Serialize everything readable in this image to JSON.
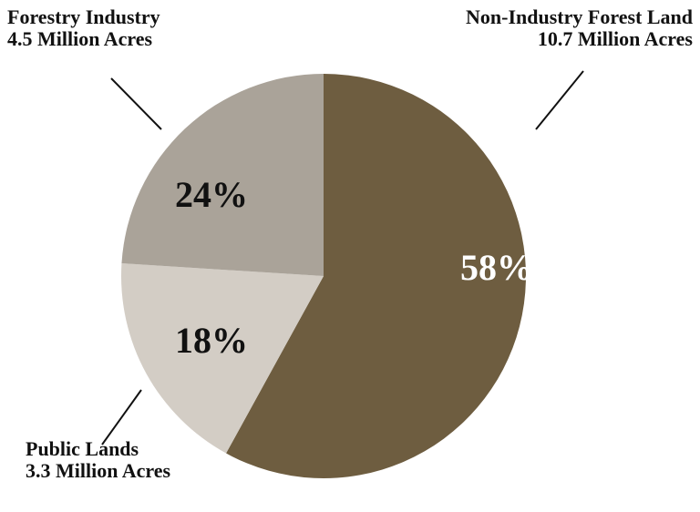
{
  "chart_data": {
    "type": "pie",
    "categories": [
      "Non-Industry Forest Land",
      "Public Lands",
      "Forestry Industry"
    ],
    "values": [
      58,
      18,
      24
    ],
    "value_labels": [
      "58%",
      "18%",
      "24%"
    ],
    "sublabels": [
      "10.7 Million Acres",
      "3.3 Million Acres",
      "4.5 Million Acres"
    ],
    "colors": [
      "#6e5d40",
      "#d3cdc5",
      "#aaa399"
    ],
    "label_colors": [
      "#ffffff",
      "#111111",
      "#111111"
    ]
  }
}
